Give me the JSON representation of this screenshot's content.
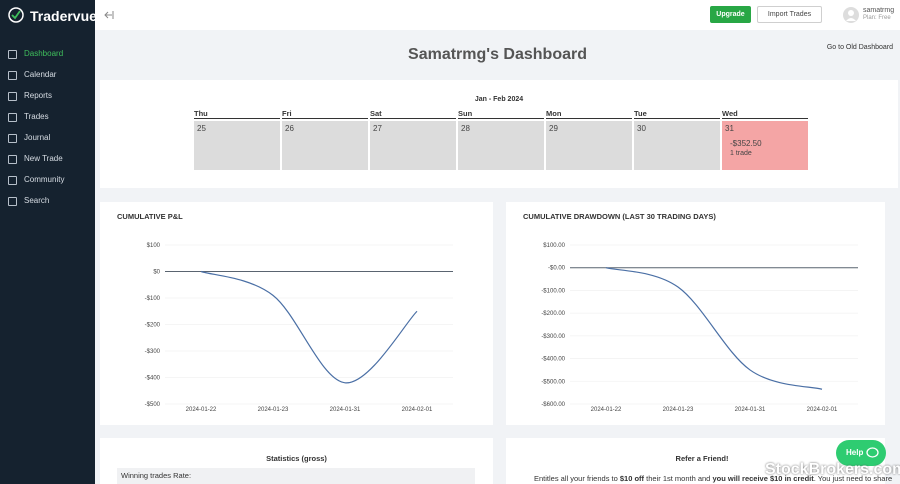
{
  "brand": "Tradervue",
  "menu": [
    "Dashboard",
    "Calendar",
    "Reports",
    "Trades",
    "Journal",
    "New Trade",
    "Community",
    "Search"
  ],
  "topbar": {
    "upgrade": "Upgrade",
    "import": "Import Trades",
    "user": "samatrmg",
    "plan": "Plan: Free"
  },
  "page": {
    "title": "Samatrmg's Dashboard",
    "old_link": "Go to Old Dashboard"
  },
  "calendar": {
    "range": "Jan - Feb 2024",
    "days": [
      {
        "weekday": "Thu",
        "date": 25
      },
      {
        "weekday": "Fri",
        "date": 26
      },
      {
        "weekday": "Sat",
        "date": 27
      },
      {
        "weekday": "Sun",
        "date": 28
      },
      {
        "weekday": "Mon",
        "date": 29
      },
      {
        "weekday": "Tue",
        "date": 30
      },
      {
        "weekday": "Wed",
        "date": 31,
        "pnl": "-$352.50",
        "trades": "1 trade"
      }
    ]
  },
  "chart_data": [
    {
      "type": "line",
      "title": "CUMULATIVE P&L",
      "categories": [
        "2024-01-22",
        "2024-01-23",
        "2024-01-31",
        "2024-02-01"
      ],
      "values": [
        0,
        -90,
        -420,
        -150
      ],
      "color": "#4a6fa5",
      "ylim": [
        -500,
        100
      ],
      "yticks": [
        {
          "value": 100,
          "label": "$100"
        },
        {
          "value": 0,
          "label": "$0"
        },
        {
          "value": -100,
          "label": "-$100"
        },
        {
          "value": -200,
          "label": "-$200"
        },
        {
          "value": -300,
          "label": "-$300"
        },
        {
          "value": -400,
          "label": "-$400"
        },
        {
          "value": -500,
          "label": "-$500"
        }
      ],
      "grid": true
    },
    {
      "type": "line",
      "title": "CUMULATIVE DRAWDOWN (LAST 30 TRADING DAYS)",
      "categories": [
        "2024-01-22",
        "2024-01-23",
        "2024-01-31",
        "2024-02-01"
      ],
      "values": [
        0,
        -85,
        -450,
        -535
      ],
      "color": "#4a6fa5",
      "ylim": [
        -600,
        100
      ],
      "yticks": [
        {
          "value": 100,
          "label": "$100.00"
        },
        {
          "value": 0,
          "label": "-$0.00"
        },
        {
          "value": -100,
          "label": "-$100.00"
        },
        {
          "value": -200,
          "label": "-$200.00"
        },
        {
          "value": -300,
          "label": "-$300.00"
        },
        {
          "value": -400,
          "label": "-$400.00"
        },
        {
          "value": -500,
          "label": "-$500.00"
        },
        {
          "value": -600,
          "label": "-$600.00"
        }
      ],
      "grid": true
    }
  ],
  "statistics": {
    "title": "Statistics (gross)",
    "rows": [
      "Winning trades Rate:"
    ]
  },
  "refer": {
    "title": "Refer a Friend!",
    "text": [
      "Entitles all your friends to ",
      "$10 off",
      " their 1st month and ",
      "you will receive $10 in credit",
      ". You just need to share"
    ]
  },
  "help": "Help",
  "watermark": "StockBrokers.com"
}
